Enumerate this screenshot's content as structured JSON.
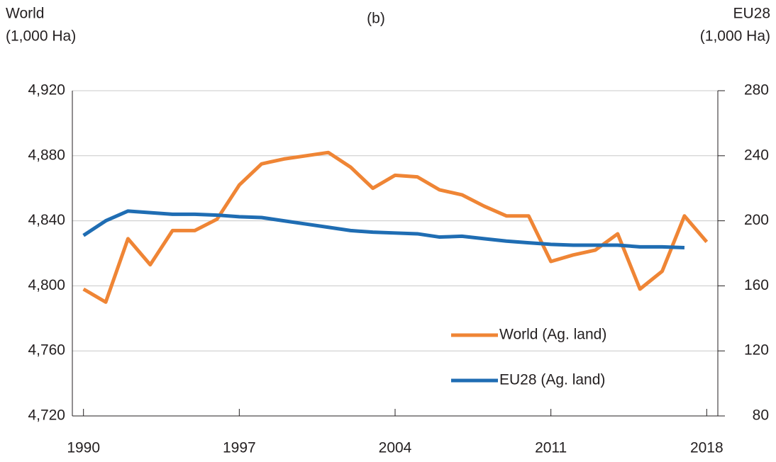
{
  "chart_data": {
    "type": "line",
    "title": "(b)",
    "ylabel": [
      "World",
      "(1,000 Ha)"
    ],
    "y2label": [
      "EU28",
      "(1,000 Ha)"
    ],
    "xlim": [
      1989.5,
      2018.5
    ],
    "xticks": [
      1990,
      1997,
      2004,
      2011,
      2018
    ],
    "ylim": [
      4720,
      4920
    ],
    "yticks": [
      {
        "value": 4720,
        "label": "4,720"
      },
      {
        "value": 4760,
        "label": "4,760"
      },
      {
        "value": 4800,
        "label": "4,800"
      },
      {
        "value": 4840,
        "label": "4,840"
      },
      {
        "value": 4880,
        "label": "4,880"
      },
      {
        "value": 4920,
        "label": "4,920"
      }
    ],
    "y2lim": [
      80,
      280
    ],
    "y2ticks": [
      80,
      120,
      160,
      200,
      240,
      280
    ],
    "grid": true,
    "legend": "lower right",
    "series": [
      {
        "name": "World (Ag. land)",
        "color": "#ef8535",
        "x": [
          1990,
          1991,
          1992,
          1993,
          1994,
          1995,
          1996,
          1997,
          1998,
          1999,
          2000,
          2001,
          2002,
          2003,
          2004,
          2005,
          2006,
          2007,
          2008,
          2009,
          2010,
          2011,
          2012,
          2013,
          2014,
          2015,
          2016,
          2017,
          2018
        ],
        "values": [
          4798,
          4790,
          4829,
          4813,
          4834,
          4834,
          4841,
          4862,
          4875,
          4878,
          4880,
          4882,
          4873,
          4860,
          4868,
          4867,
          4859,
          4856,
          4849,
          4843,
          4843,
          4815,
          4819,
          4822,
          4832,
          4798,
          4809,
          4843,
          4827
        ]
      },
      {
        "name": "EU28 (Ag. land)",
        "color": "#1f6db3",
        "axis": "y2",
        "x": [
          1990,
          1991,
          1992,
          1993,
          1994,
          1995,
          1996,
          1997,
          1998,
          1999,
          2000,
          2001,
          2002,
          2003,
          2004,
          2005,
          2006,
          2007,
          2008,
          2009,
          2010,
          2011,
          2012,
          2013,
          2014,
          2015,
          2016,
          2017
        ],
        "values": [
          191,
          200,
          206,
          205,
          204,
          204,
          203.5,
          202.5,
          202,
          200,
          198,
          196,
          194,
          193,
          192.5,
          192,
          190,
          190.5,
          189,
          187.5,
          186.5,
          185.5,
          185,
          185,
          185,
          184,
          184,
          183.5
        ]
      }
    ]
  }
}
